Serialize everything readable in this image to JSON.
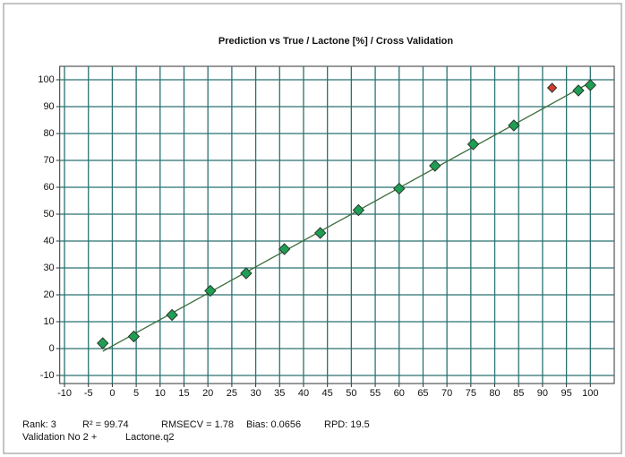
{
  "chart_data": {
    "type": "scatter",
    "title": "Prediction vs True  /  Lactone [%]  /  Cross Validation",
    "xlim": [
      -11,
      105
    ],
    "ylim": [
      -13,
      105
    ],
    "xticks": [
      -10,
      -5,
      0,
      5,
      10,
      15,
      20,
      25,
      30,
      35,
      40,
      45,
      50,
      55,
      60,
      65,
      70,
      75,
      80,
      85,
      90,
      95,
      100
    ],
    "yticks": [
      -10,
      0,
      10,
      20,
      30,
      40,
      50,
      60,
      70,
      80,
      90,
      100
    ],
    "grid": true,
    "grid_color": "#2a7272",
    "fit_line": {
      "x": [
        -2,
        100
      ],
      "y": [
        -1,
        99
      ],
      "color": "#3c6e3c"
    },
    "series": [
      {
        "color": "#1f9e55",
        "x": [
          -2,
          4.5,
          12.5,
          20.5,
          28,
          36,
          43.5,
          51.5,
          60,
          67.5,
          75.5,
          84,
          97.5,
          100
        ],
        "values": [
          2,
          4.5,
          12.5,
          21.5,
          28,
          37,
          43,
          51.5,
          59.5,
          68,
          76,
          83,
          96,
          98
        ]
      },
      {
        "color": "#d23a2e",
        "x": [
          92
        ],
        "values": [
          97
        ]
      }
    ],
    "annotations": [
      "Rank: 3",
      "R² = 99.74",
      "RMSECV = 1.78",
      "Bias: 0.0656",
      "RPD: 19.5",
      "Validation No 2 +",
      "Lactone.q2"
    ]
  }
}
